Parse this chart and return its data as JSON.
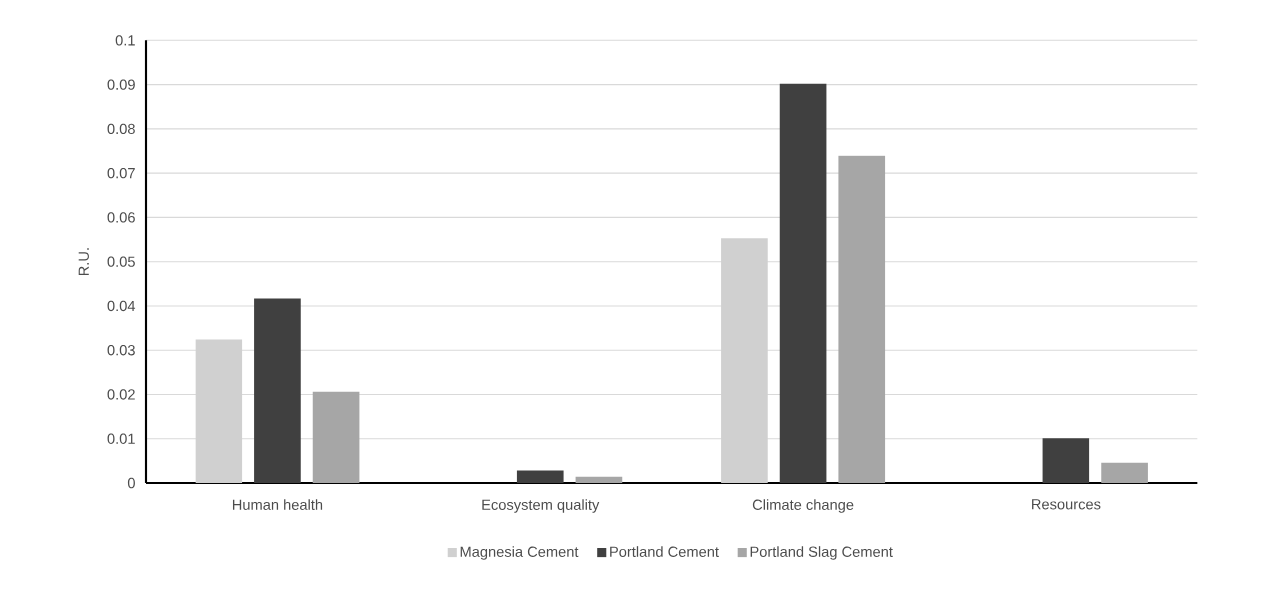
{
  "chart_data": {
    "type": "bar",
    "ylabel": "R.U.",
    "categories": [
      "Human health",
      "Ecosystem quality",
      "Climate change",
      "Resources"
    ],
    "series": [
      {
        "name": "Magnesia Cement",
        "color": "#d0d0d0",
        "values": [
          0.0324,
          null,
          0.0553,
          null
        ]
      },
      {
        "name": "Portland Cement",
        "color": "#404040",
        "values": [
          0.0417,
          0.0028,
          0.0902,
          0.0101
        ]
      },
      {
        "name": "Portland Slag Cement",
        "color": "#a6a6a6",
        "values": [
          0.0206,
          0.0014,
          0.0739,
          0.0046
        ]
      }
    ],
    "ylim": [
      0,
      0.1
    ],
    "yticks": [
      0,
      0.01,
      0.02,
      0.03,
      0.04,
      0.05,
      0.06,
      0.07,
      0.08,
      0.09,
      0.1
    ],
    "grid": "y",
    "legend": "bottom"
  }
}
